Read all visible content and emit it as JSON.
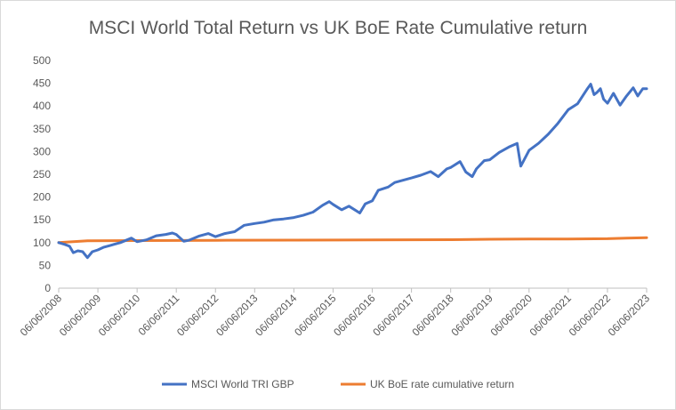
{
  "chart_data": {
    "type": "line",
    "title": "MSCI World Total Return vs UK BoE Rate Cumulative return",
    "xlabel": "",
    "ylabel": "",
    "ylim": [
      0,
      500
    ],
    "yticks": [
      0,
      50,
      100,
      150,
      200,
      250,
      300,
      350,
      400,
      450,
      500
    ],
    "xlim": [
      "2008-06-06",
      "2023-06-06"
    ],
    "xticks": [
      "06/06/2008",
      "06/06/2009",
      "06/06/2010",
      "06/06/2011",
      "06/06/2012",
      "06/06/2013",
      "06/06/2014",
      "06/06/2015",
      "06/06/2016",
      "06/06/2017",
      "06/06/2018",
      "06/06/2019",
      "06/06/2020",
      "06/06/2021",
      "06/06/2022",
      "06/06/2023"
    ],
    "grid": false,
    "legend_position": "bottom",
    "series": [
      {
        "name": "MSCI World TRI GBP",
        "color": "#4472C4",
        "points": [
          [
            "2008-06-06",
            100
          ],
          [
            "2008-08-01",
            96
          ],
          [
            "2008-09-15",
            92
          ],
          [
            "2008-10-20",
            78
          ],
          [
            "2008-12-01",
            82
          ],
          [
            "2009-01-15",
            80
          ],
          [
            "2009-03-01",
            67
          ],
          [
            "2009-04-15",
            80
          ],
          [
            "2009-06-06",
            84
          ],
          [
            "2009-08-01",
            90
          ],
          [
            "2009-10-01",
            94
          ],
          [
            "2010-01-01",
            100
          ],
          [
            "2010-04-15",
            110
          ],
          [
            "2010-06-06",
            102
          ],
          [
            "2010-09-01",
            106
          ],
          [
            "2010-12-01",
            115
          ],
          [
            "2011-03-01",
            118
          ],
          [
            "2011-05-01",
            121
          ],
          [
            "2011-06-06",
            118
          ],
          [
            "2011-08-15",
            103
          ],
          [
            "2011-10-01",
            105
          ],
          [
            "2012-01-01",
            114
          ],
          [
            "2012-04-01",
            120
          ],
          [
            "2012-06-06",
            113
          ],
          [
            "2012-09-01",
            120
          ],
          [
            "2012-12-01",
            124
          ],
          [
            "2013-03-01",
            138
          ],
          [
            "2013-06-06",
            142
          ],
          [
            "2013-09-01",
            145
          ],
          [
            "2013-12-01",
            150
          ],
          [
            "2014-03-01",
            152
          ],
          [
            "2014-06-06",
            155
          ],
          [
            "2014-09-01",
            160
          ],
          [
            "2014-12-01",
            167
          ],
          [
            "2015-03-01",
            182
          ],
          [
            "2015-05-01",
            190
          ],
          [
            "2015-06-06",
            184
          ],
          [
            "2015-08-25",
            172
          ],
          [
            "2015-11-01",
            180
          ],
          [
            "2016-02-10",
            165
          ],
          [
            "2016-04-01",
            185
          ],
          [
            "2016-06-06",
            192
          ],
          [
            "2016-08-01",
            215
          ],
          [
            "2016-11-01",
            222
          ],
          [
            "2017-01-01",
            232
          ],
          [
            "2017-06-06",
            242
          ],
          [
            "2017-09-01",
            248
          ],
          [
            "2017-12-01",
            256
          ],
          [
            "2018-02-10",
            245
          ],
          [
            "2018-05-01",
            262
          ],
          [
            "2018-06-06",
            265
          ],
          [
            "2018-09-01",
            278
          ],
          [
            "2018-10-25",
            255
          ],
          [
            "2018-12-24",
            245
          ],
          [
            "2019-02-01",
            262
          ],
          [
            "2019-04-15",
            280
          ],
          [
            "2019-06-06",
            282
          ],
          [
            "2019-09-01",
            298
          ],
          [
            "2019-12-01",
            310
          ],
          [
            "2020-02-15",
            318
          ],
          [
            "2020-03-20",
            268
          ],
          [
            "2020-06-06",
            303
          ],
          [
            "2020-09-01",
            318
          ],
          [
            "2020-12-01",
            338
          ],
          [
            "2021-03-01",
            362
          ],
          [
            "2021-06-06",
            392
          ],
          [
            "2021-09-01",
            405
          ],
          [
            "2021-12-01",
            438
          ],
          [
            "2022-01-01",
            448
          ],
          [
            "2022-02-01",
            425
          ],
          [
            "2022-03-01",
            430
          ],
          [
            "2022-04-01",
            438
          ],
          [
            "2022-05-01",
            415
          ],
          [
            "2022-06-06",
            406
          ],
          [
            "2022-08-01",
            428
          ],
          [
            "2022-10-01",
            402
          ],
          [
            "2022-12-01",
            422
          ],
          [
            "2023-02-01",
            440
          ],
          [
            "2023-03-15",
            422
          ],
          [
            "2023-05-01",
            438
          ],
          [
            "2023-06-06",
            438
          ]
        ]
      },
      {
        "name": "UK BoE rate cumulative return",
        "color": "#ED7D31",
        "points": [
          [
            "2008-06-06",
            100
          ],
          [
            "2009-03-01",
            104
          ],
          [
            "2010-06-06",
            104.5
          ],
          [
            "2012-06-06",
            105
          ],
          [
            "2014-06-06",
            105.5
          ],
          [
            "2016-06-06",
            106
          ],
          [
            "2018-06-06",
            106.5
          ],
          [
            "2019-06-06",
            107.5
          ],
          [
            "2020-06-06",
            108
          ],
          [
            "2021-06-06",
            108
          ],
          [
            "2022-06-06",
            108.5
          ],
          [
            "2022-12-01",
            110
          ],
          [
            "2023-06-06",
            111
          ]
        ]
      }
    ]
  }
}
